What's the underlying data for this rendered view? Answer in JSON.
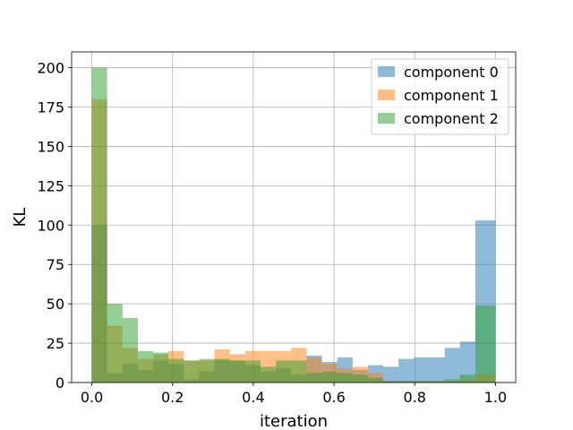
{
  "chart_data": {
    "type": "bar",
    "subtype": "overlaid-histogram",
    "xlabel": "iteration",
    "ylabel": "KL",
    "xlim": [
      -0.05,
      1.05
    ],
    "ylim": [
      0,
      210
    ],
    "grid": true,
    "legend_position": "top-right",
    "x_ticks": [
      0.0,
      0.2,
      0.4,
      0.6,
      0.8,
      1.0
    ],
    "x_tick_labels": [
      "0.0",
      "0.2",
      "0.4",
      "0.6",
      "0.8",
      "1.0"
    ],
    "y_ticks": [
      0,
      25,
      50,
      75,
      100,
      125,
      150,
      175,
      200
    ],
    "y_tick_labels": [
      "0",
      "25",
      "50",
      "75",
      "100",
      "125",
      "150",
      "175",
      "200"
    ],
    "series": [
      {
        "name": "component 0",
        "color": "#1f77b4",
        "bins": [
          {
            "x0": 0.0,
            "x1": 0.038,
            "count": 100
          },
          {
            "x0": 0.038,
            "x1": 0.076,
            "count": 6
          },
          {
            "x0": 0.076,
            "x1": 0.114,
            "count": 12
          },
          {
            "x0": 0.114,
            "x1": 0.152,
            "count": 8
          },
          {
            "x0": 0.152,
            "x1": 0.19,
            "count": 14
          },
          {
            "x0": 0.19,
            "x1": 0.228,
            "count": 12
          },
          {
            "x0": 0.228,
            "x1": 0.266,
            "count": 2
          },
          {
            "x0": 0.266,
            "x1": 0.304,
            "count": 7
          },
          {
            "x0": 0.304,
            "x1": 0.342,
            "count": 14
          },
          {
            "x0": 0.342,
            "x1": 0.38,
            "count": 14
          },
          {
            "x0": 0.38,
            "x1": 0.418,
            "count": 11
          },
          {
            "x0": 0.418,
            "x1": 0.456,
            "count": 7
          },
          {
            "x0": 0.456,
            "x1": 0.494,
            "count": 9
          },
          {
            "x0": 0.494,
            "x1": 0.532,
            "count": 5
          },
          {
            "x0": 0.532,
            "x1": 0.57,
            "count": 17
          },
          {
            "x0": 0.57,
            "x1": 0.608,
            "count": 13
          },
          {
            "x0": 0.608,
            "x1": 0.646,
            "count": 16
          },
          {
            "x0": 0.646,
            "x1": 0.684,
            "count": 8
          },
          {
            "x0": 0.684,
            "x1": 0.722,
            "count": 11
          },
          {
            "x0": 0.722,
            "x1": 0.76,
            "count": 10
          },
          {
            "x0": 0.76,
            "x1": 0.798,
            "count": 15
          },
          {
            "x0": 0.798,
            "x1": 0.836,
            "count": 16
          },
          {
            "x0": 0.836,
            "x1": 0.874,
            "count": 16
          },
          {
            "x0": 0.874,
            "x1": 0.912,
            "count": 22
          },
          {
            "x0": 0.912,
            "x1": 0.95,
            "count": 26
          },
          {
            "x0": 0.95,
            "x1": 1.0,
            "count": 103
          }
        ]
      },
      {
        "name": "component 1",
        "color": "#ff7f0e",
        "bins": [
          {
            "x0": 0.0,
            "x1": 0.038,
            "count": 180
          },
          {
            "x0": 0.038,
            "x1": 0.076,
            "count": 36
          },
          {
            "x0": 0.076,
            "x1": 0.114,
            "count": 22
          },
          {
            "x0": 0.114,
            "x1": 0.152,
            "count": 15
          },
          {
            "x0": 0.152,
            "x1": 0.19,
            "count": 18
          },
          {
            "x0": 0.19,
            "x1": 0.228,
            "count": 20
          },
          {
            "x0": 0.228,
            "x1": 0.266,
            "count": 14
          },
          {
            "x0": 0.266,
            "x1": 0.304,
            "count": 14
          },
          {
            "x0": 0.304,
            "x1": 0.342,
            "count": 21
          },
          {
            "x0": 0.342,
            "x1": 0.38,
            "count": 18
          },
          {
            "x0": 0.38,
            "x1": 0.418,
            "count": 20
          },
          {
            "x0": 0.418,
            "x1": 0.456,
            "count": 20
          },
          {
            "x0": 0.456,
            "x1": 0.494,
            "count": 20
          },
          {
            "x0": 0.494,
            "x1": 0.532,
            "count": 22
          },
          {
            "x0": 0.532,
            "x1": 0.57,
            "count": 16
          },
          {
            "x0": 0.57,
            "x1": 0.608,
            "count": 12
          },
          {
            "x0": 0.608,
            "x1": 0.646,
            "count": 9
          },
          {
            "x0": 0.646,
            "x1": 0.684,
            "count": 10
          },
          {
            "x0": 0.684,
            "x1": 0.722,
            "count": 6
          },
          {
            "x0": 0.722,
            "x1": 0.76,
            "count": 1
          },
          {
            "x0": 0.76,
            "x1": 0.798,
            "count": 1
          },
          {
            "x0": 0.798,
            "x1": 0.836,
            "count": 1
          },
          {
            "x0": 0.836,
            "x1": 0.874,
            "count": 1
          },
          {
            "x0": 0.874,
            "x1": 0.912,
            "count": 1
          },
          {
            "x0": 0.912,
            "x1": 0.95,
            "count": 2
          },
          {
            "x0": 0.95,
            "x1": 1.0,
            "count": 5
          }
        ]
      },
      {
        "name": "component 2",
        "color": "#2ca02c",
        "bins": [
          {
            "x0": 0.0,
            "x1": 0.038,
            "count": 200
          },
          {
            "x0": 0.038,
            "x1": 0.076,
            "count": 50
          },
          {
            "x0": 0.076,
            "x1": 0.114,
            "count": 41
          },
          {
            "x0": 0.114,
            "x1": 0.152,
            "count": 20
          },
          {
            "x0": 0.152,
            "x1": 0.19,
            "count": 19
          },
          {
            "x0": 0.19,
            "x1": 0.228,
            "count": 15
          },
          {
            "x0": 0.228,
            "x1": 0.266,
            "count": 14
          },
          {
            "x0": 0.266,
            "x1": 0.304,
            "count": 15
          },
          {
            "x0": 0.304,
            "x1": 0.342,
            "count": 15
          },
          {
            "x0": 0.342,
            "x1": 0.38,
            "count": 14
          },
          {
            "x0": 0.38,
            "x1": 0.418,
            "count": 14
          },
          {
            "x0": 0.418,
            "x1": 0.456,
            "count": 10
          },
          {
            "x0": 0.456,
            "x1": 0.494,
            "count": 14
          },
          {
            "x0": 0.494,
            "x1": 0.532,
            "count": 14
          },
          {
            "x0": 0.532,
            "x1": 0.57,
            "count": 6
          },
          {
            "x0": 0.57,
            "x1": 0.608,
            "count": 7
          },
          {
            "x0": 0.608,
            "x1": 0.646,
            "count": 6
          },
          {
            "x0": 0.646,
            "x1": 0.684,
            "count": 5
          },
          {
            "x0": 0.684,
            "x1": 0.722,
            "count": 3
          },
          {
            "x0": 0.722,
            "x1": 0.76,
            "count": 1
          },
          {
            "x0": 0.76,
            "x1": 0.798,
            "count": 1
          },
          {
            "x0": 0.798,
            "x1": 0.836,
            "count": 1
          },
          {
            "x0": 0.836,
            "x1": 0.874,
            "count": 1
          },
          {
            "x0": 0.874,
            "x1": 0.912,
            "count": 2
          },
          {
            "x0": 0.912,
            "x1": 0.95,
            "count": 5
          },
          {
            "x0": 0.95,
            "x1": 1.0,
            "count": 49
          }
        ]
      }
    ]
  }
}
